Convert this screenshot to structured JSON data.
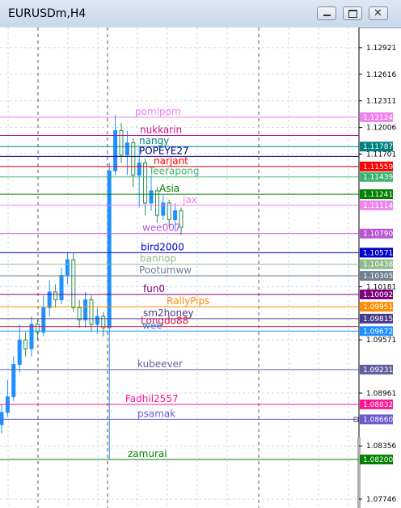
{
  "window": {
    "title": "EURUSDm,H4"
  },
  "chart_data": {
    "type": "candlestick",
    "ylim": [
      1.07644,
      1.13152
    ],
    "yticks": [
      1.12921,
      1.12616,
      1.12311,
      1.12006,
      1.11701,
      1.10181,
      1.09571,
      1.08961,
      1.08356,
      1.07746
    ],
    "grid": true,
    "up_color": "#1e90ff",
    "down_color": "#2e8b57",
    "candles": [
      [
        1.086,
        1.0883,
        1.085,
        1.0874
      ],
      [
        1.0874,
        1.0911,
        1.0869,
        1.0892
      ],
      [
        1.0892,
        1.0938,
        1.0887,
        1.0929
      ],
      [
        1.0929,
        1.0975,
        1.092,
        1.0957
      ],
      [
        1.0957,
        1.0966,
        1.0938,
        1.0947
      ],
      [
        1.0947,
        1.0984,
        1.0938,
        1.0975
      ],
      [
        1.0975,
        1.098,
        1.0957,
        1.0966
      ],
      [
        1.0966,
        1.1008,
        1.0961,
        1.0994
      ],
      [
        1.0994,
        1.1026,
        1.0984,
        1.1012
      ],
      [
        1.1012,
        1.1021,
        1.0994,
        1.1003
      ],
      [
        1.1003,
        1.104,
        1.0998,
        1.1031
      ],
      [
        1.1031,
        1.1057,
        1.1021,
        1.1049
      ],
      [
        1.1049,
        1.1057,
        1.0989,
        1.0994
      ],
      [
        1.0994,
        1.1003,
        1.0971,
        1.098
      ],
      [
        1.098,
        1.1012,
        1.0971,
        1.1003
      ],
      [
        1.1003,
        1.1008,
        1.0966,
        1.0975
      ],
      [
        1.0975,
        1.0994,
        1.0964,
        1.0984
      ],
      [
        1.0984,
        1.0989,
        1.0961,
        1.0971
      ],
      [
        1.0971,
        1.116,
        1.082,
        1.1151
      ],
      [
        1.1151,
        1.1215,
        1.1146,
        1.1197
      ],
      [
        1.1197,
        1.1206,
        1.116,
        1.1169
      ],
      [
        1.1169,
        1.1197,
        1.1146,
        1.1183
      ],
      [
        1.1183,
        1.1188,
        1.1132,
        1.1146
      ],
      [
        1.1146,
        1.1178,
        1.1109,
        1.116
      ],
      [
        1.116,
        1.1165,
        1.11,
        1.1114
      ],
      [
        1.1114,
        1.1146,
        1.1105,
        1.1128
      ],
      [
        1.1128,
        1.1132,
        1.1091,
        1.11
      ],
      [
        1.11,
        1.1123,
        1.1095,
        1.1114
      ],
      [
        1.1114,
        1.1118,
        1.1086,
        1.1095
      ],
      [
        1.1095,
        1.1114,
        1.1081,
        1.1105
      ],
      [
        1.1105,
        1.1109,
        1.1077,
        1.1086
      ]
    ],
    "levels": [
      {
        "name": "pomipom",
        "price": 1.12124,
        "price_label": "1.12124",
        "color": "#ee82ee"
      },
      {
        "name": "nukkarin",
        "price": 1.11914,
        "color": "#c71585"
      },
      {
        "name": "nangy",
        "price": 1.11787,
        "price_label": "1.11787",
        "color": "#008080"
      },
      {
        "name": "POPEYE27",
        "price": 1.11674,
        "color": "#000080"
      },
      {
        "name": "narjant",
        "price": 1.11559,
        "price_label": "1.11559",
        "color": "#ff0000"
      },
      {
        "name": "Teerapong",
        "price": 1.11439,
        "price_label": "1.11439",
        "color": "#3cb371"
      },
      {
        "name": "Asia",
        "price": 1.11241,
        "price_label": "1.11241",
        "color": "#008000"
      },
      {
        "name": "jax",
        "price": 1.11114,
        "price_label": "1.11114",
        "color": "#ee82ee"
      },
      {
        "name": "wee007",
        "price": 1.1079,
        "price_label": "1.10790",
        "color": "#ba55d3"
      },
      {
        "name": "bird2000",
        "price": 1.10571,
        "price_label": "1.10571",
        "color": "#0000cd"
      },
      {
        "name": "bannop",
        "price": 1.10438,
        "price_label": "1.10438",
        "color": "#8fbc8f"
      },
      {
        "name": "Pootumww",
        "price": 1.10305,
        "price_label": "1.10305",
        "color": "#708090"
      },
      {
        "name": "fun0",
        "price": 1.10092,
        "price_label": "1.10092",
        "color": "#800080"
      },
      {
        "name": "RallyPips",
        "price": 1.09951,
        "price_label": "1.09951",
        "color": "#ff8c00"
      },
      {
        "name": "sm2honey",
        "price": 1.09815,
        "price_label": "1.09815",
        "color": "#483d8b"
      },
      {
        "name": "Longdo88",
        "price": 1.09724,
        "color": "#dc143c"
      },
      {
        "name": "wee",
        "price": 1.09672,
        "price_label": "1.09672",
        "color": "#1e90ff"
      },
      {
        "name": "kubeever",
        "price": 1.09231,
        "price_label": "1.09231",
        "color": "#5f5f9f"
      },
      {
        "name": "Fadhil2557",
        "price": 1.08832,
        "price_label": "1.08832",
        "color": "#ff1493"
      },
      {
        "name": "psamak",
        "price": 1.0866,
        "price_label": "1.08660",
        "color": "#6a5acd"
      },
      {
        "name": "zamurai",
        "price": 1.082,
        "price_label": "1.08200",
        "color": "#008000"
      }
    ]
  }
}
